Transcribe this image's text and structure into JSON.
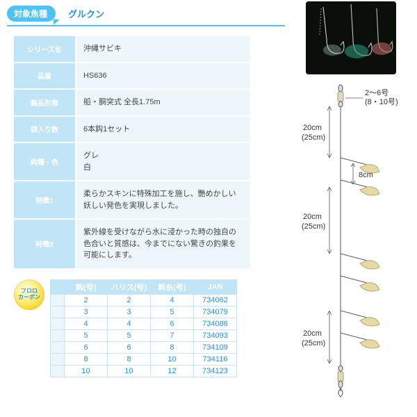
{
  "header": {
    "badge_label": "対象魚種",
    "fish_name": "グルクン"
  },
  "spec_rows": [
    {
      "label": "シリーズ名",
      "value": "沖縄サビキ"
    },
    {
      "label": "品番",
      "value": "HS636"
    },
    {
      "label": "製品形態",
      "value": "船・胴突式 全長1.75m"
    },
    {
      "label": "袋入り数",
      "value": "6本鈎1セット"
    },
    {
      "label": "鈎種・色",
      "value": "グレ\n白"
    },
    {
      "label": "特徴1",
      "value": "柔らかスキンに特殊加工を施し、艶めかしい妖しい発色を実現しました。"
    },
    {
      "label": "特徴2",
      "value": "紫外線を受けながら水に浸かった時の独自の色合いと質感は、今までにない驚きの釣果を可能にします。"
    }
  ],
  "fluoro": {
    "line1": "フロロ",
    "line2": "カーボン"
  },
  "size_table": {
    "headers": [
      "鈎(号)",
      "ハリス(号)",
      "幹糸(号)",
      "JAN"
    ],
    "rows": [
      [
        "2",
        "2",
        "4",
        "734062"
      ],
      [
        "3",
        "3",
        "5",
        "734079"
      ],
      [
        "4",
        "4",
        "6",
        "734086"
      ],
      [
        "5",
        "5",
        "7",
        "734093"
      ],
      [
        "6",
        "6",
        "8",
        "734109"
      ],
      [
        "8",
        "8",
        "10",
        "734116"
      ],
      [
        "10",
        "10",
        "12",
        "734123"
      ]
    ]
  },
  "diagram": {
    "top_label_1": "2～6号",
    "top_label_2": "(8・10号)",
    "seg_long": "20cm",
    "seg_long_paren": "(25cm)",
    "seg_short": "8cm"
  },
  "colors": {
    "badge_bg": "#4fc3f7",
    "link_blue": "#2a90d8",
    "header_cell": "#bfe5f7",
    "value_cell": "#edf6fb"
  }
}
